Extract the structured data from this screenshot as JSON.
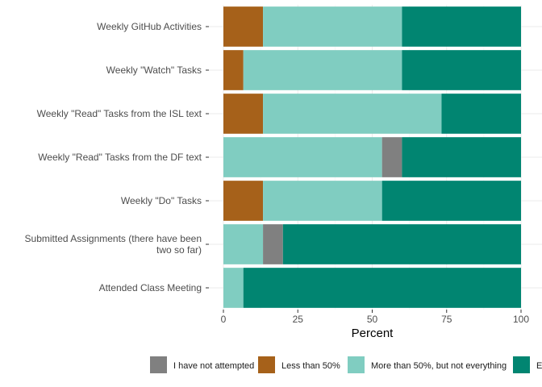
{
  "chart_data": {
    "type": "bar",
    "orientation": "horizontal",
    "stacked": true,
    "title": "",
    "xlabel": "Percent",
    "ylabel": "",
    "xlim": [
      0,
      100
    ],
    "x_ticks": [
      "0",
      "25",
      "50",
      "75",
      "100"
    ],
    "grid": true,
    "legend_position": "bottom",
    "categories": [
      "Weekly GitHub Activities",
      "Weekly \"Watch\" Tasks",
      "Weekly \"Read\" Tasks from the ISL text",
      "Weekly \"Read\" Tasks from the DF text",
      "Weekly \"Do\" Tasks",
      "Submitted Assignments (there have been two so far)",
      "Attended Class Meeting"
    ],
    "category_label_lines": [
      [
        "Weekly GitHub Activities"
      ],
      [
        "Weekly \"Watch\" Tasks"
      ],
      [
        "Weekly \"Read\" Tasks from the ISL text"
      ],
      [
        "Weekly \"Read\" Tasks from the DF text"
      ],
      [
        "Weekly \"Do\" Tasks"
      ],
      [
        "Submitted Assignments (there have been",
        "two so far)"
      ],
      [
        "Attended Class Meeting"
      ]
    ],
    "series": [
      {
        "name": "Less than 50%",
        "color": "#a6611a",
        "values": [
          13.3,
          6.7,
          13.3,
          0,
          13.3,
          0,
          0
        ]
      },
      {
        "name": "More than 50%, but not everything",
        "color": "#80cdc1",
        "values": [
          46.7,
          53.3,
          60.0,
          53.3,
          40.0,
          13.3,
          6.7
        ]
      },
      {
        "name": "I have not attempted",
        "color": "#808080",
        "values": [
          0,
          0,
          0,
          6.7,
          0,
          6.7,
          0
        ]
      },
      {
        "name": "Everything",
        "color": "#018571",
        "values": [
          40.0,
          40.0,
          26.7,
          40.0,
          46.7,
          80.0,
          93.3
        ]
      }
    ],
    "legend_order": [
      "I have not attempted",
      "Less than 50%",
      "More than 50%, but not everything",
      "Everything"
    ]
  }
}
